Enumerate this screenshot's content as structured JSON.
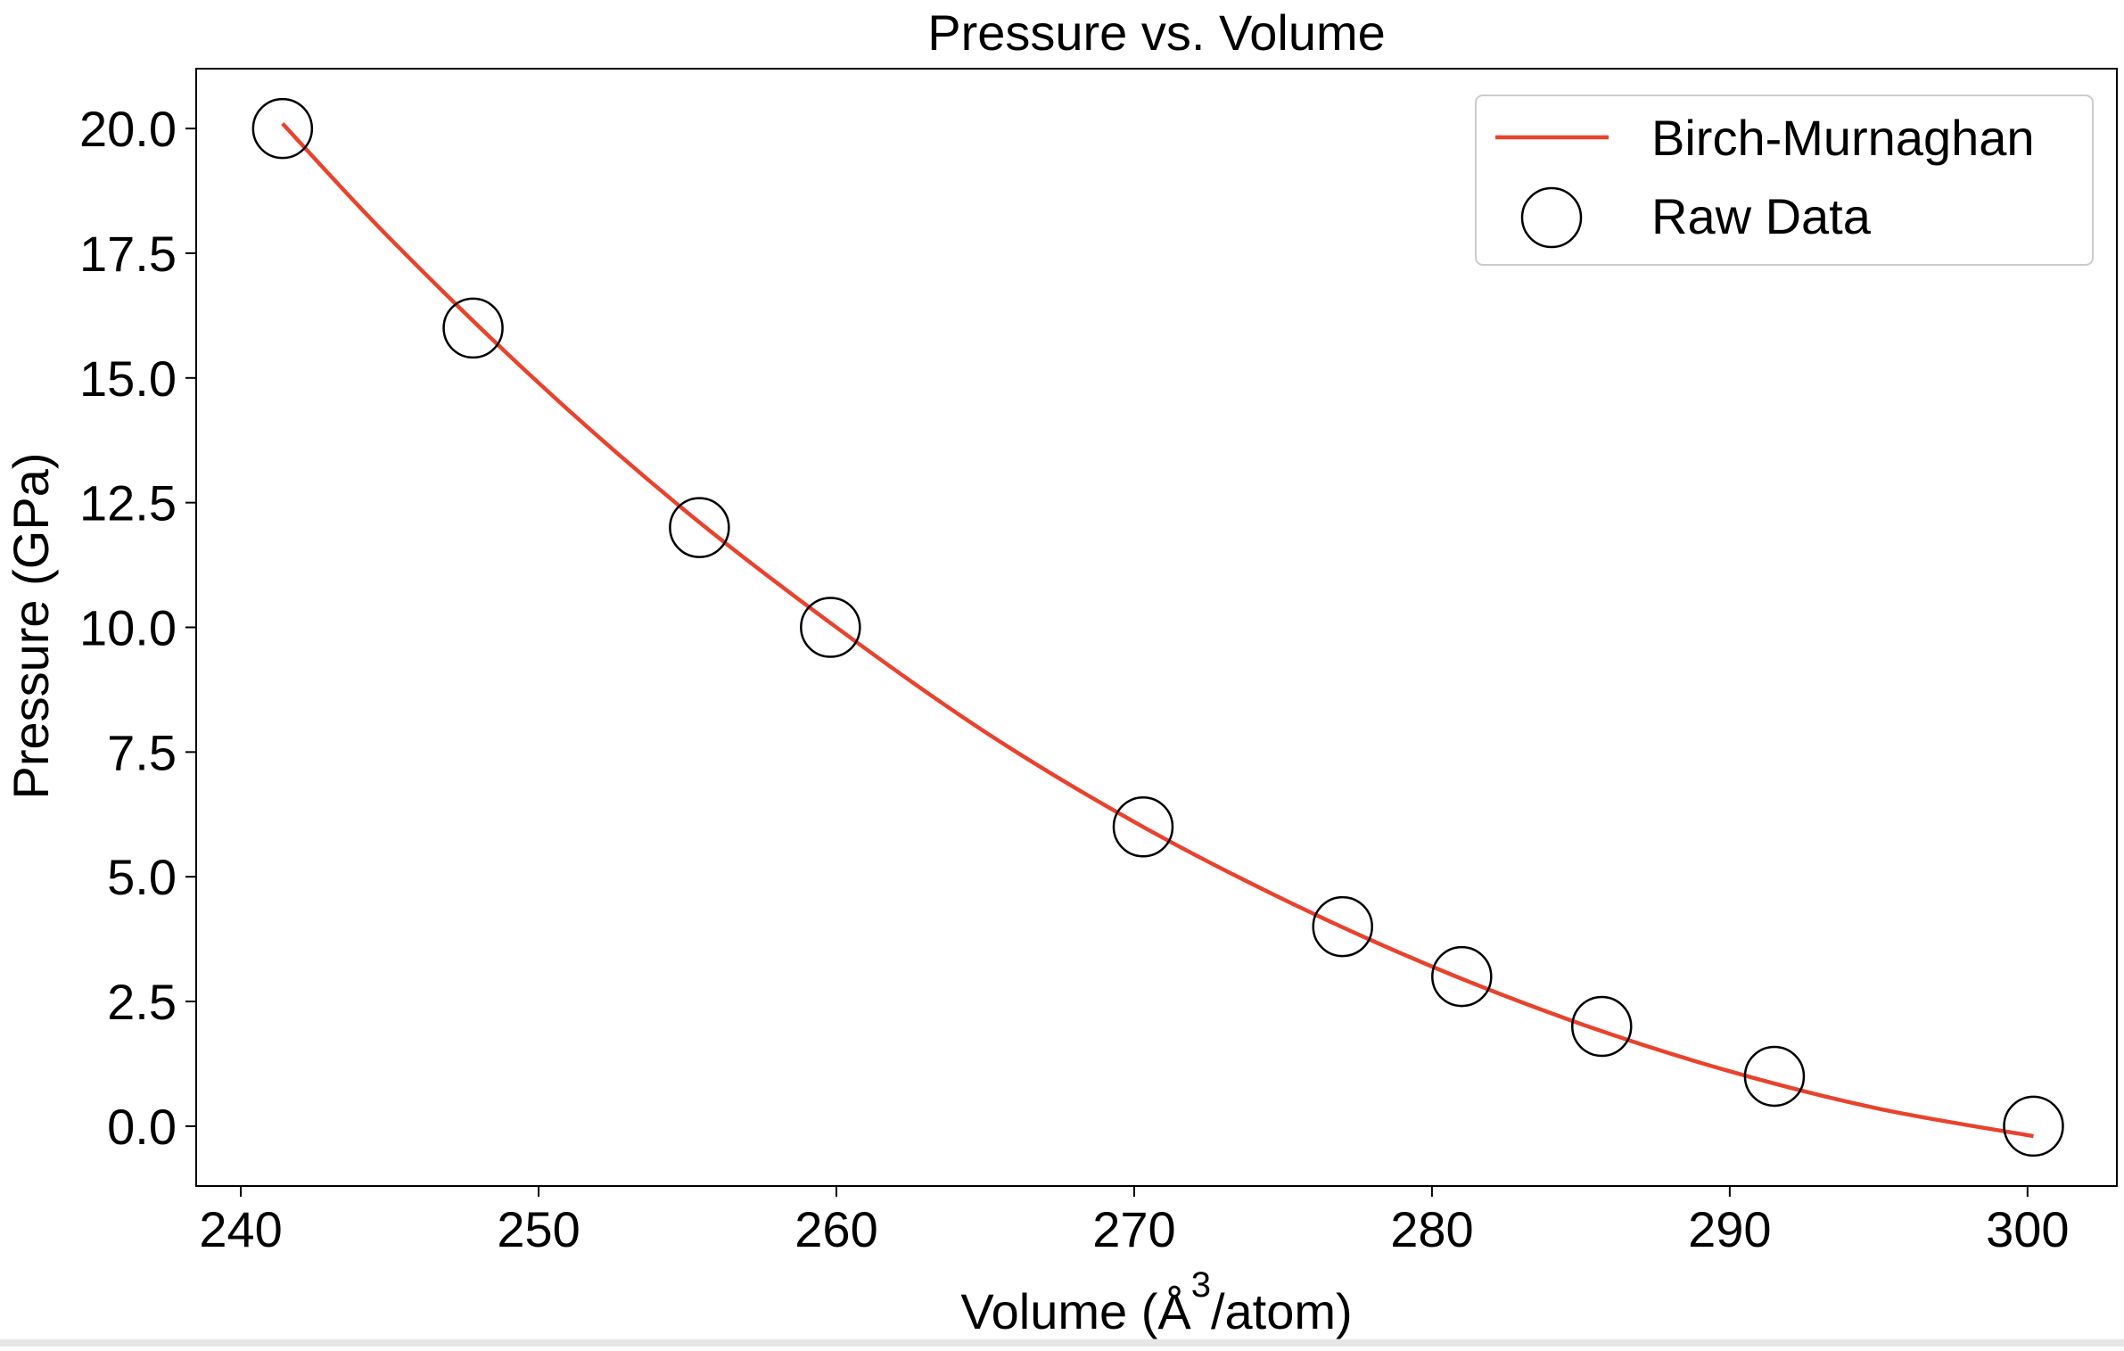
{
  "chart_data": {
    "type": "line",
    "title": "Pressure vs. Volume",
    "xlabel": "Volume (Å",
    "xlabel_superscript": "3",
    "xlabel_suffix": "/atom)",
    "ylabel": "Pressure (GPa)",
    "xlim": [
      238.5,
      303.0
    ],
    "ylim": [
      -1.2,
      21.2
    ],
    "xticks": [
      240,
      250,
      260,
      270,
      280,
      290,
      300
    ],
    "xtick_labels": [
      "240",
      "250",
      "260",
      "270",
      "280",
      "290",
      "300"
    ],
    "yticks": [
      0.0,
      2.5,
      5.0,
      7.5,
      10.0,
      12.5,
      15.0,
      17.5,
      20.0
    ],
    "ytick_labels": [
      "0.0",
      "2.5",
      "5.0",
      "7.5",
      "10.0",
      "12.5",
      "15.0",
      "17.5",
      "20.0"
    ],
    "grid": false,
    "legend_position": "top-right",
    "series": [
      {
        "name": "Birch-Murnaghan",
        "kind": "line",
        "color": "#e8432d",
        "x": [
          241.4,
          245.0,
          250.0,
          255.0,
          260.0,
          265.0,
          270.0,
          275.0,
          280.0,
          285.0,
          290.0,
          295.0,
          300.2
        ],
        "y": [
          20.1,
          17.8,
          14.9,
          12.3,
          10.0,
          7.9,
          6.1,
          4.55,
          3.2,
          2.05,
          1.1,
          0.35,
          -0.2
        ]
      },
      {
        "name": "Raw Data",
        "kind": "scatter",
        "marker": "open-circle",
        "color": "#000000",
        "x": [
          241.4,
          247.8,
          255.4,
          259.8,
          270.3,
          277.0,
          281.0,
          285.7,
          291.5,
          300.2
        ],
        "y": [
          20.0,
          16.0,
          12.0,
          10.0,
          6.0,
          4.0,
          3.0,
          2.0,
          1.0,
          0.0
        ]
      }
    ]
  }
}
